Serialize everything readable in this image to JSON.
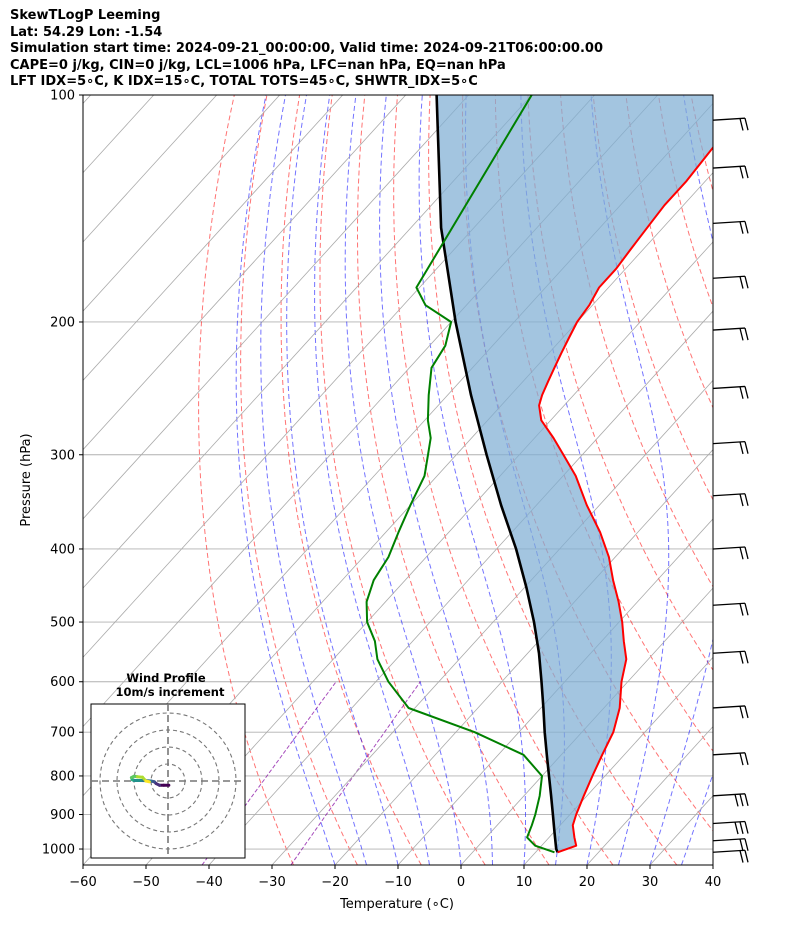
{
  "header": {
    "line1": "SkewTLogP Leeming",
    "line2": "Lat: 54.29   Lon: -1.54",
    "line3": "Simulation start time: 2024-09-21_00:00:00, Valid time: 2024-09-21T06:00:00.00",
    "line4": "CAPE=0 j/kg, CIN=0 j/kg, LCL=1006 hPa, LFC=nan hPa, EQ=nan hPa",
    "line5": "LFT IDX=5∘C, K IDX=15∘C, TOTAL TOTS=45∘C, SHWTR_IDX=5∘C"
  },
  "chart_data": {
    "type": "skewt",
    "xlabel": "Temperature (∘C)",
    "ylabel": "Pressure (hPa)",
    "xlim": [
      -60,
      40
    ],
    "ylim": [
      1050,
      100
    ],
    "y_scale": "log",
    "x_ticks": [
      -60,
      -50,
      -40,
      -30,
      -20,
      -10,
      0,
      10,
      20,
      30,
      40
    ],
    "x_tick_labels": [
      "−60",
      "−50",
      "−40",
      "−30",
      "−20",
      "−10",
      "0",
      "10",
      "20",
      "30",
      "40"
    ],
    "p_ticks": [
      1000,
      900,
      800,
      700,
      600,
      500,
      400,
      300,
      200,
      100
    ],
    "grid": true,
    "colors": {
      "temperature": "#ff0000",
      "dewpoint": "#008000",
      "parcel": "#000000",
      "cin_shading": "#7fafd4",
      "dry_adiabats": "#ff0000",
      "moist_adiabats": "#0000ff",
      "mixing_ratio": "#8000a0",
      "isotherms": "#aaaaaa"
    },
    "temperature_profile": {
      "p": [
        1010,
        990,
        965,
        930,
        900,
        850,
        800,
        750,
        700,
        650,
        600,
        560,
        530,
        500,
        470,
        440,
        410,
        380,
        350,
        320,
        300,
        285,
        270,
        258,
        250,
        240,
        230,
        220,
        210,
        200,
        190,
        180,
        170,
        160,
        150,
        140,
        130,
        120,
        110,
        100
      ],
      "t": [
        13.5,
        15.5,
        14.0,
        12.0,
        11.0,
        9.5,
        8.0,
        6.5,
        5.0,
        2.5,
        -1.0,
        -3.5,
        -6.5,
        -9.5,
        -13.0,
        -17.0,
        -21.0,
        -26.0,
        -32.0,
        -38.0,
        -43.0,
        -47.0,
        -51.5,
        -54.0,
        -55.0,
        -56.0,
        -57.0,
        -58.0,
        -59.0,
        -60.0,
        -60.5,
        -61.5,
        -61.5,
        -62.0,
        -62.5,
        -63.0,
        -63.0,
        -63.5,
        -64.0,
        -63.5
      ]
    },
    "dewpoint_profile": {
      "p": [
        1010,
        990,
        965,
        930,
        900,
        850,
        800,
        750,
        700,
        650,
        600,
        560,
        530,
        500,
        470,
        440,
        410,
        380,
        350,
        320,
        300,
        285,
        270,
        250,
        230,
        215,
        200,
        190,
        180,
        100
      ],
      "t": [
        13.0,
        9.0,
        6.5,
        5.5,
        4.5,
        2.5,
        0.0,
        -6.0,
        -17.0,
        -31.0,
        -38.0,
        -43.0,
        -46.0,
        -50.0,
        -53.0,
        -55.0,
        -56.0,
        -58.0,
        -60.0,
        -62.0,
        -64.5,
        -66.5,
        -69.5,
        -73.0,
        -76.5,
        -77.5,
        -80.0,
        -86.5,
        -90.5,
        -100.0
      ]
    },
    "parcel_profile": {
      "p": [
        1010,
        1000,
        950,
        900,
        850,
        800,
        750,
        700,
        650,
        600,
        550,
        500,
        450,
        400,
        350,
        300,
        250,
        200,
        150,
        100
      ],
      "t": [
        13.5,
        12.8,
        10.1,
        7.3,
        4.3,
        1.1,
        -2.3,
        -5.9,
        -9.6,
        -13.7,
        -18.2,
        -23.5,
        -29.7,
        -36.9,
        -45.6,
        -55.2,
        -66.3,
        -79.3,
        -95.2,
        -115.1
      ]
    },
    "shaded_region": "between temperature and parcel (CIN)",
    "wind_barbs": [
      {
        "p": 1010,
        "barbs": 2
      },
      {
        "p": 975,
        "barbs": 2
      },
      {
        "p": 925,
        "barbs": 3
      },
      {
        "p": 850,
        "barbs": 3
      },
      {
        "p": 750,
        "barbs": 2
      },
      {
        "p": 650,
        "barbs": 2
      },
      {
        "p": 550,
        "barbs": 2
      },
      {
        "p": 475,
        "barbs": 2
      },
      {
        "p": 400,
        "barbs": 2
      },
      {
        "p": 340,
        "barbs": 2
      },
      {
        "p": 290,
        "barbs": 2
      },
      {
        "p": 245,
        "barbs": 2
      },
      {
        "p": 205,
        "barbs": 2
      },
      {
        "p": 175,
        "barbs": 2
      },
      {
        "p": 148,
        "barbs": 2
      },
      {
        "p": 125,
        "barbs": 2
      },
      {
        "p": 108,
        "barbs": 2
      }
    ],
    "hodograph": {
      "title": "Wind Profile",
      "subtitle": "10m/s increment",
      "ring_increment": 10,
      "u": [
        0.5,
        -2.5,
        -5.0,
        -7.0,
        -8.0,
        -10.0,
        -13.0,
        -16.0,
        -20.0,
        -21.0,
        -21.5,
        -20.0,
        -18.0,
        -15.0,
        -13.0,
        -11.0
      ],
      "v": [
        -2.5,
        -2.5,
        -2.5,
        -1.5,
        -0.5,
        0.0,
        0.2,
        0.3,
        0.3,
        0.8,
        2.0,
        2.8,
        2.5,
        2.2,
        0.0,
        -0.5
      ],
      "colormap": "viridis"
    }
  }
}
